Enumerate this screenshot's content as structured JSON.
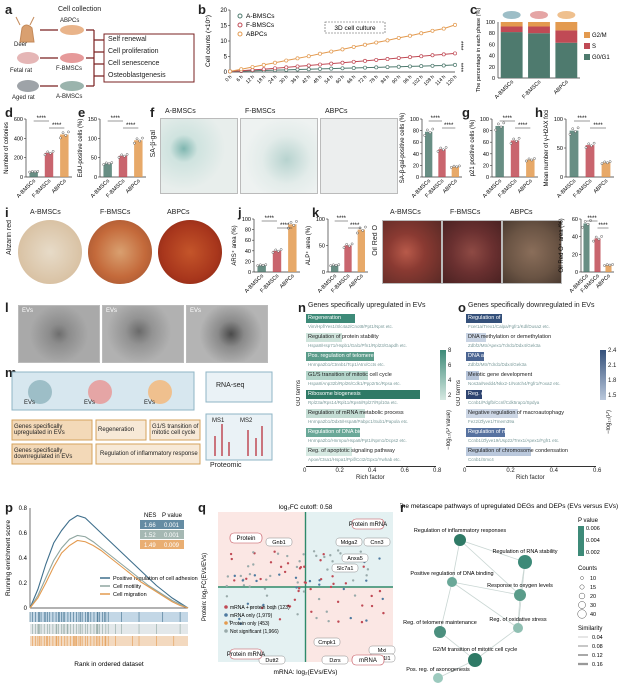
{
  "panels": [
    "a",
    "b",
    "c",
    "d",
    "e",
    "f",
    "g",
    "h",
    "i",
    "j",
    "k",
    "l",
    "m",
    "n",
    "o",
    "p",
    "q",
    "r"
  ],
  "a": {
    "title": "Cell collection",
    "sources": [
      {
        "animal": "Deer",
        "cell": "ABPCs"
      },
      {
        "animal": "Fetal rat",
        "cell": "F-BMSCs"
      },
      {
        "animal": "Aged rat",
        "cell": "A-BMSCs"
      }
    ],
    "assays": [
      "Self renewal",
      "Cell proliferation",
      "Cell senescence",
      "Osteoblastgenesis"
    ]
  },
  "groups": [
    "A-BMSCs",
    "F-BMSCs",
    "ABPCs"
  ],
  "colors": {
    "abmsc": "#4e7a6e",
    "fbmsc": "#c04a55",
    "abpc": "#e39a4f",
    "green": "#2e8a6a"
  },
  "chart_data": [
    {
      "panel": "b",
      "type": "line",
      "title": "3D cell culture",
      "ylabel": "Cell counts (×10⁵)",
      "x": [
        "0 h",
        "6 h",
        "12 h",
        "18 h",
        "24 h",
        "30 h",
        "36 h",
        "42 h",
        "48 h",
        "54 h",
        "60 h",
        "66 h",
        "72 h",
        "78 h",
        "84 h",
        "90 h",
        "96 h",
        "102 h",
        "108 h",
        "114 h",
        "120 h"
      ],
      "ylim": [
        0,
        20
      ],
      "yticks": [
        0,
        5,
        10,
        15,
        20
      ],
      "series": [
        {
          "name": "A-BMSCs",
          "values": [
            0.2,
            0.3,
            0.4,
            0.5,
            0.6,
            0.7,
            0.8,
            0.9,
            1.0,
            1.1,
            1.2,
            1.3,
            1.4,
            1.5,
            1.6,
            1.7,
            1.8,
            1.9,
            2.0,
            2.1,
            2.3
          ]
        },
        {
          "name": "F-BMSCs",
          "values": [
            0.2,
            0.4,
            0.7,
            0.9,
            1.2,
            1.5,
            1.8,
            2.1,
            2.4,
            2.7,
            3.0,
            3.3,
            3.6,
            3.9,
            4.2,
            4.5,
            4.8,
            5.1,
            5.4,
            5.7,
            6.0
          ]
        },
        {
          "name": "ABPCs",
          "values": [
            0.2,
            0.9,
            1.6,
            2.3,
            3.0,
            3.7,
            4.4,
            5.1,
            5.9,
            6.6,
            7.3,
            8.1,
            8.8,
            9.5,
            10.2,
            11.0,
            11.7,
            12.5,
            13.3,
            14.0,
            15.2
          ]
        }
      ],
      "sig": [
        "****",
        "****"
      ]
    },
    {
      "panel": "c",
      "type": "bar",
      "ylabel": "The percentage in each phase (%)",
      "categories": [
        "A-BMSCs",
        "F-BMSCs",
        "ABPCs"
      ],
      "ylim": [
        0,
        100
      ],
      "yticks": [
        0,
        20,
        40,
        60,
        80,
        100
      ],
      "series": [
        {
          "name": "G0/G1",
          "values": [
            82,
            80,
            63
          ]
        },
        {
          "name": "S",
          "values": [
            10,
            12,
            22
          ]
        },
        {
          "name": "G2/M",
          "values": [
            8,
            8,
            15
          ]
        }
      ]
    },
    {
      "panel": "d",
      "type": "bar",
      "ylabel": "Number of colonies",
      "categories": [
        "A-BMSCs",
        "F-BMSCs",
        "ABPCs"
      ],
      "values": [
        55,
        250,
        440
      ],
      "ylim": [
        0,
        600
      ],
      "yticks": [
        0,
        200,
        400,
        600
      ],
      "sig": [
        "****",
        "****"
      ]
    },
    {
      "panel": "e",
      "type": "bar",
      "ylabel": "EdU-positive cells (%)",
      "categories": [
        "A-BMSCs",
        "F-BMSCs",
        "ABPCs"
      ],
      "values": [
        35,
        55,
        95
      ],
      "ylim": [
        0,
        150
      ],
      "yticks": [
        0,
        50,
        100,
        150
      ],
      "sig": [
        "****",
        "****"
      ]
    },
    {
      "panel": "f",
      "type": "bar",
      "ylabel": "SA-β-gal-positive cells (%)",
      "categories": [
        "A-BMSCs",
        "F-BMSCs",
        "ABPCs"
      ],
      "values": [
        78,
        48,
        18
      ],
      "ylim": [
        0,
        100
      ],
      "yticks": [
        0,
        20,
        40,
        60,
        80,
        100
      ],
      "sig": [
        "****",
        "****"
      ]
    },
    {
      "panel": "g",
      "type": "bar",
      "ylabel": "p21 positive cells (%)",
      "categories": [
        "A-BMSCs",
        "F-BMSCs",
        "ABPCs"
      ],
      "values": [
        88,
        63,
        30
      ],
      "ylim": [
        0,
        100
      ],
      "yticks": [
        0,
        20,
        40,
        60,
        80,
        100
      ],
      "sig": [
        "****",
        "****"
      ]
    },
    {
      "panel": "h",
      "type": "bar",
      "ylabel": "Mean number of γ-H2AX foci",
      "categories": [
        "A-BMSCs",
        "F-BMSCs",
        "ABPCs"
      ],
      "values": [
        80,
        55,
        25
      ],
      "ylim": [
        0,
        100
      ],
      "yticks": [
        0,
        50,
        100
      ],
      "sig": [
        "****",
        "****"
      ]
    },
    {
      "panel": "i",
      "type": "bar",
      "ylabel": "ARS⁺ area (%)",
      "categories": [
        "A-BMSCs",
        "F-BMSCs",
        "ABPCs"
      ],
      "values": [
        13,
        40,
        90
      ],
      "ylim": [
        0,
        100
      ],
      "yticks": [
        0,
        20,
        40,
        60,
        80,
        100
      ],
      "sig": [
        "****",
        "****"
      ]
    },
    {
      "panel": "j",
      "type": "bar",
      "ylabel": "ALP⁺ area (%)",
      "categories": [
        "A-BMSCs",
        "F-BMSCs",
        "ABPCs"
      ],
      "values": [
        13,
        50,
        80
      ],
      "ylim": [
        0,
        100
      ],
      "yticks": [
        0,
        50,
        100
      ],
      "sig": [
        "****",
        "****"
      ]
    },
    {
      "panel": "k",
      "type": "bar",
      "ylabel": "Oil Red O⁺ area (%)",
      "categories": [
        "A-BMSCs",
        "F-BMSCs",
        "ABPCs"
      ],
      "values": [
        55,
        38,
        8
      ],
      "ylim": [
        0,
        60
      ],
      "yticks": [
        0,
        20,
        40,
        60
      ],
      "sig": [
        "****",
        "****"
      ]
    },
    {
      "panel": "n",
      "type": "bar",
      "title": "Genes specifically upregulated in EVs",
      "xlabel": "Rich factor",
      "ylabel": "GO terms",
      "legend": "−log₁₀(P value)",
      "legend_ticks": [
        "2",
        "4",
        "6",
        "8"
      ],
      "xticks": [
        "0",
        "0.2",
        "0.4",
        "0.6",
        "0.8"
      ],
      "terms": [
        {
          "term": "Regeneration",
          "genes": "Vim/Hpf/Yes1/Slc4a2/Cnot8/Ppt1/Npnt etc.",
          "value": 0.3
        },
        {
          "term": "Regulation of protein stability",
          "genes": "Hspa8/Hsp71/Hspb1/Gal1/Pfn1/Rpl23/Gapdh etc.",
          "value": 0.22
        },
        {
          "term": "Pos. regulation of telomere maintenance",
          "genes": "Hnrnpa2b1/Ctnnb1/Tcp1/Atrx/Ccts etc.",
          "value": 0.42
        },
        {
          "term": "G1/S transition of mitotic cell cycle",
          "genes": "Hspa8/Anp32b/Rpl26/Cdk1/Ppp2r5c/Rpsa etc.",
          "value": 0.38
        },
        {
          "term": "Ribosome biogenesis",
          "genes": "Rpl23a/Rps14/Rpl11/Rps6/Rpl27/Rpl10a etc.",
          "value": 0.7
        },
        {
          "term": "Regulation of mRNA metabolic process",
          "genes": "Hnrnpa2b1/Ddx5/Hspa8/Pabpc1/Sub1/Papola etc.",
          "value": 0.36
        },
        {
          "term": "Regulation of DNA biosynthetic process",
          "genes": "Hnrnpa2b1/Hnrnpu/Hspa8/Ppt1/Npm1/Dcps2 etc.",
          "value": 0.33
        },
        {
          "term": "Reg. of apoptotic signaling pathway",
          "genes": "Apoe/Ctsa1/Hspa1/Ppif/Cct2/Gpx1/Ywhab etc.",
          "value": 0.28
        }
      ]
    },
    {
      "panel": "o",
      "type": "bar",
      "title": "Genes specifically downregulated in EVs",
      "xlabel": "Rich factor",
      "ylabel": "GO terms",
      "legend": "−log₁₀(P)",
      "legend_ticks": [
        "1.5",
        "1.8",
        "2.1",
        "2.4"
      ],
      "xticks": [
        "0",
        "0.2",
        "0.4",
        "0.6"
      ],
      "terms": [
        {
          "term": "Regulation of inflammatory response",
          "genes": "Fcer1a/Trex1/Calpa/Fgfr1/Kdl/Dusa2 etc.",
          "value": 0.22
        },
        {
          "term": "DNA methylation or demethylation",
          "genes": "Zdbf2/Mtr/Apex1/Tdrd1/Ddx4/Gek3a",
          "value": 0.12
        },
        {
          "term": "DNA alkylation",
          "genes": "Zdbf2/Mtr/Tdrd1/Ddx4/Gek3a",
          "value": 0.11
        },
        {
          "term": "Meiotic gene development",
          "genes": "Nos3a/Nedd4/Nkx2-1/Notch4/Fgfr1/Foxa2 etc.",
          "value": 0.07
        },
        {
          "term": "Reg. of cyclin-dependent protein kinase",
          "genes": "Ccnb1/Pdgfb/Ccnf/Cdk5rap1/Spdya",
          "value": 0.1
        },
        {
          "term": "Negative regulation of macroautophagy",
          "genes": "Fez2/Zfyve1/Tmem39a",
          "value": 0.32
        },
        {
          "term": "Regulation of mitotic cell cycle",
          "genes": "Ccnb1/Zfyve19/Usp22/Trex1/Apex1/Fgfr1 etc.",
          "value": 0.24
        },
        {
          "term": "Regulation of chromosome condensation",
          "genes": "Ccnb1/Smc4",
          "value": 0.4
        }
      ]
    },
    {
      "panel": "p",
      "type": "line",
      "ylabel": "Running enrichment score",
      "xlabel": "Rank in ordered dataset",
      "ylim": [
        0,
        0.8
      ],
      "yticks": [
        "0",
        "0.2",
        "0.4",
        "0.6",
        "0.8"
      ],
      "x": [
        0,
        1,
        2,
        3,
        4,
        5,
        6,
        7,
        8,
        9,
        10,
        11,
        12,
        13,
        14,
        15,
        16,
        17,
        18,
        19,
        20
      ],
      "series": [
        {
          "name": "Positive regulation of cell adhesion",
          "nes": "1.66",
          "p": "0.001",
          "values": [
            0,
            0.15,
            0.35,
            0.52,
            0.62,
            0.7,
            0.74,
            0.72,
            0.66,
            0.6,
            0.54,
            0.48,
            0.42,
            0.36,
            0.3,
            0.24,
            0.18,
            0.13,
            0.08,
            0.04,
            0
          ]
        },
        {
          "name": "Cell motility",
          "nes": "1.52",
          "p": "0.001",
          "values": [
            0,
            0.1,
            0.24,
            0.38,
            0.48,
            0.55,
            0.58,
            0.57,
            0.53,
            0.48,
            0.43,
            0.38,
            0.33,
            0.28,
            0.23,
            0.18,
            0.14,
            0.1,
            0.06,
            0.03,
            0
          ]
        },
        {
          "name": "Cell migration",
          "nes": "1.49",
          "p": "0.009",
          "values": [
            0,
            0.08,
            0.2,
            0.33,
            0.44,
            0.5,
            0.54,
            0.53,
            0.5,
            0.46,
            0.41,
            0.36,
            0.31,
            0.26,
            0.21,
            0.17,
            0.13,
            0.09,
            0.05,
            0.02,
            0
          ]
        }
      ],
      "headers": [
        "NES",
        "P value"
      ]
    },
    {
      "panel": "q",
      "type": "scatter",
      "xlabel": "mRNA: log₂(EVs/EVs)",
      "ylabel": "Protein: log₂FC(EVs/EVs)",
      "cutoff": "log₂FC cutoff: 0.58",
      "quadrant_labels": [
        "Protein",
        "Protein mRNA",
        "Protein mRNA",
        "mRNA"
      ],
      "genes": [
        "Gnb1",
        "Mdga2",
        "Cnn3",
        "Anxa5",
        "Slc7a1",
        "Cmpk1",
        "Mxi",
        "Ppp1l1",
        "Dzrs",
        "Dutt2"
      ],
      "legend": [
        "mRNA + protein both (123)",
        "mRNA only (1,979)",
        "Protein only (453)",
        "Not significant (1,966)"
      ]
    },
    {
      "panel": "r",
      "type": "table",
      "title": "The metascape pathways of upregulated DEGs and DEPs (EVs versus EVs)",
      "nodes": [
        "Regulation of inflammatory responses",
        "Regulation of RNA stability",
        "Positive regulation of DNA binding",
        "Response to oxygen levels",
        "Reg. of oxidative stress",
        "Reg. of telomere maintenance",
        "G2/M transition of mitotic cell cycle",
        "Pos. reg. of axonogenesis"
      ],
      "legend_p_title": "P value",
      "legend_p": [
        "0.006",
        "0.004",
        "0.002"
      ],
      "legend_counts_title": "Counts",
      "legend_counts": [
        "10",
        "15",
        "20",
        "30",
        "40"
      ],
      "legend_similarity_title": "Similarity",
      "legend_similarity": [
        "0.04",
        "0.08",
        "0.12",
        "0.16"
      ]
    }
  ],
  "f": {
    "title": "SA-β-gal",
    "images": [
      "A-BMSCs",
      "F-BMSCs",
      "ABPCs"
    ]
  },
  "i": {
    "title": "Alizarin red",
    "images": [
      "A-BMSCs",
      "F-BMSCs",
      "ABPCs"
    ]
  },
  "k": {
    "title": "Oil Red O",
    "images": [
      "A-BMSCs",
      "F-BMSCs",
      "ABPCs"
    ]
  },
  "l": {
    "images": [
      "EVs",
      "EVs",
      "EVs"
    ]
  },
  "m": {
    "evs": [
      "EVs",
      "EVs",
      "EVs"
    ],
    "methods": [
      "RNA-seq",
      "Proteomic"
    ],
    "ms": [
      "MS1",
      "MS2"
    ],
    "row1": [
      "Genes specifically upregulated in EVs",
      "Regeneration",
      "G1/S transition of mitotic cell cycle"
    ],
    "row2": [
      "Genes specifically downregulated in EVs",
      "Regulation of inflammatory response"
    ]
  }
}
